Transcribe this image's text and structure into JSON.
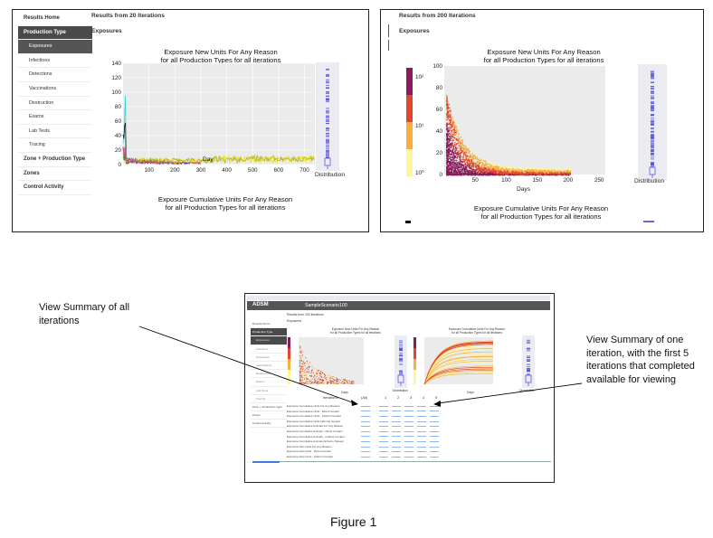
{
  "panel1": {
    "results_title": "Results from 20 Iterations",
    "section": "Exposures",
    "sidebar": [
      {
        "label": "Results Home",
        "kind": "top"
      },
      {
        "label": "Production Type",
        "kind": "dark"
      },
      {
        "label": "Exposures",
        "kind": "sub-dark"
      },
      {
        "label": "Infections",
        "kind": "sub"
      },
      {
        "label": "Detections",
        "kind": "sub"
      },
      {
        "label": "Vaccinations",
        "kind": "sub"
      },
      {
        "label": "Destruction",
        "kind": "sub"
      },
      {
        "label": "Exams",
        "kind": "sub"
      },
      {
        "label": "Lab Tests",
        "kind": "sub"
      },
      {
        "label": "Tracing",
        "kind": "sub"
      },
      {
        "label": "Zone + Production Type",
        "kind": "top"
      },
      {
        "label": "Zones",
        "kind": "top"
      },
      {
        "label": "Control Activity",
        "kind": "top"
      }
    ],
    "chart_title_1": "Exposure New Units For Any Reason",
    "chart_title_2": "for all Production Types for all iterations",
    "xlabel": "Day",
    "dist_label": "Distribution",
    "next_title_1": "Exposure Cumulative Units For Any Reason",
    "next_title_2": "for all Production Types for all iterations"
  },
  "panel2": {
    "results_title": "Results from 200 Iterations",
    "section": "Exposures",
    "chart_title_1": "Exposure New Units For Any Reason",
    "chart_title_2": "for all Production Types for all iterations",
    "xlabel": "Days",
    "dist_label": "Distribution",
    "colorbar_ticks": [
      "10²",
      "10¹",
      "10⁰"
    ],
    "next_title_1": "Exposure Cumulative Units For Any Reason",
    "next_title_2": "for all Production Types for all iterations"
  },
  "panel3": {
    "logo": "ADSM",
    "scenario": "SampleScenario100",
    "results_title": "Results from 100 Iterations",
    "section": "Exposures",
    "chart_left_title": "Exposure New Units For Any Reason",
    "chart_left_sub": "for all Production Types for all iterations",
    "chart_right_title": "Exposure Cumulative Units For Any Reason",
    "chart_right_sub": "for all Production Types for all iterations",
    "xlabel": "Days",
    "dist_label": "Distribution",
    "table_header": [
      "Iterations",
      "(All)",
      "1",
      "2",
      "3",
      "4",
      "5"
    ],
    "table_rows": [
      "Exposure Cumulative Units For Any Reason",
      "Exposure Cumulative Units - Direct Contact",
      "Exposure Cumulative Units - Indirect Contact",
      "Exposure Cumulative Units Airborne Spread",
      "Exposure Cumulative Animals For Any Reason",
      "Exposure Cumulative Animals - Direct Contact",
      "Exposure Cumulative Animals - Indirect Contact",
      "Exposure Cumulative Animals Airborne Spread",
      "Exposure New Units For Any Reason",
      "Exposure New Units - Direct Contact",
      "Exposure New Units - Indirect Contact"
    ]
  },
  "annotations": {
    "left": "View Summary of all iterations",
    "right": "View Summary of one iteration, with the first 5 iterations that completed available for viewing"
  },
  "caption": "Figure 1",
  "chart_data": [
    {
      "type": "line",
      "title": "Exposure New Units For Any Reason for all Production Types for all iterations",
      "xlabel": "Day",
      "xlim": [
        0,
        740
      ],
      "ylim": [
        0,
        140
      ],
      "x_ticks": [
        100,
        200,
        300,
        400,
        500,
        600,
        700
      ],
      "y_ticks": [
        0,
        20,
        40,
        60,
        80,
        100,
        120,
        140
      ],
      "series_colors": [
        "#2fd6d6",
        "#1a1a1a",
        "#f2e600",
        "#e62020",
        "#2c3bd6",
        "#1fae3a",
        "#f08a1c",
        "#b0b030",
        "#c23cc2"
      ]
    },
    {
      "type": "heatmap",
      "title": "Exposure New Units For Any Reason for all Production Types for all iterations",
      "xlabel": "Days",
      "xlim": [
        0,
        260
      ],
      "ylim": [
        0,
        100
      ],
      "x_ticks": [
        50,
        100,
        150,
        200,
        250
      ],
      "y_ticks": [
        0,
        20,
        40,
        60,
        80,
        100
      ],
      "colorscale": "log",
      "colorbar_ticks": [
        "10²",
        "10¹",
        "10⁰"
      ]
    }
  ]
}
